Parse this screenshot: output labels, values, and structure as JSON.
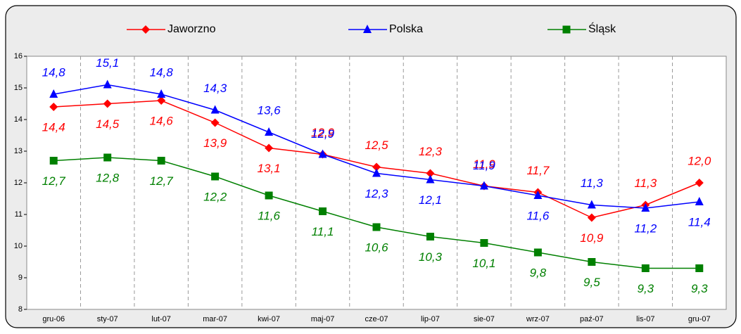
{
  "chart_data": {
    "type": "line",
    "categories": [
      "gru-06",
      "sty-07",
      "lut-07",
      "mar-07",
      "kwi-07",
      "maj-07",
      "cze-07",
      "lip-07",
      "sie-07",
      "wrz-07",
      "paź-07",
      "lis-07",
      "gru-07"
    ],
    "series": [
      {
        "name": "Jaworzno",
        "color": "#ff0000",
        "marker": "diamond",
        "values": [
          14.4,
          14.5,
          14.6,
          13.9,
          13.1,
          12.9,
          12.5,
          12.3,
          11.9,
          11.7,
          10.9,
          11.3,
          12.0
        ],
        "value_labels": [
          "14,4",
          "14,5",
          "14,6",
          "13,9",
          "13,1",
          "12,9",
          "12,5",
          "12,3",
          "11,9",
          "11,7",
          "10,9",
          "11,3",
          "12,0"
        ]
      },
      {
        "name": "Polska",
        "color": "#0000ff",
        "marker": "triangle",
        "values": [
          14.8,
          15.1,
          14.8,
          14.3,
          13.6,
          12.9,
          12.3,
          12.1,
          11.9,
          11.6,
          11.3,
          11.2,
          11.4
        ],
        "value_labels": [
          "14,8",
          "15,1",
          "14,8",
          "14,3",
          "13,6",
          "12,9",
          "12,3",
          "12,1",
          "11,9",
          "11,6",
          "11,3",
          "11,2",
          "11,4"
        ]
      },
      {
        "name": "Śląsk",
        "color": "#008000",
        "marker": "square",
        "values": [
          12.7,
          12.8,
          12.7,
          12.2,
          11.6,
          11.1,
          10.6,
          10.3,
          10.1,
          9.8,
          9.5,
          9.3,
          9.3
        ],
        "value_labels": [
          "12,7",
          "12,8",
          "12,7",
          "12,2",
          "11,6",
          "11,1",
          "10,6",
          "10,3",
          "10,1",
          "9,8",
          "9,5",
          "9,3",
          "9,3"
        ]
      }
    ],
    "ylim": [
      8,
      16
    ],
    "yticks": [
      8,
      9,
      10,
      11,
      12,
      13,
      14,
      15,
      16
    ],
    "grid": true,
    "legend": "top"
  }
}
